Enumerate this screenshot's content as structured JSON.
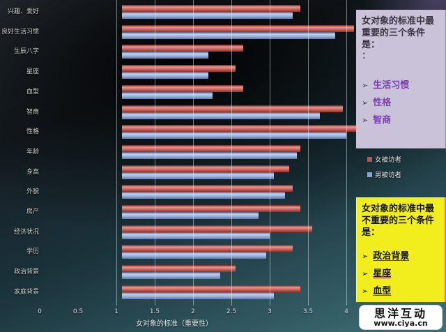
{
  "chart_data": {
    "type": "bar",
    "orientation": "horizontal",
    "title": "",
    "xlabel": "女对象的标准（重要性）",
    "xlim": [
      0,
      4
    ],
    "xticks": [
      0,
      0.5,
      1,
      1.5,
      2,
      2.5,
      3,
      3.5,
      4
    ],
    "grid": "vertical, every 0.5 from 1 to 4",
    "legend_position": "right",
    "categories": [
      "兴趣、爱好",
      "良好生活习惯",
      "生辰八字",
      "星座",
      "血型",
      "智商",
      "性格",
      "年龄",
      "身高",
      "外貌",
      "房产",
      "经济状况",
      "学历",
      "政治背景",
      "家庭背景"
    ],
    "series": [
      {
        "name": "女被访者",
        "color": "#c0504d",
        "values": [
          3.4,
          4.1,
          2.65,
          2.55,
          2.65,
          3.95,
          4.15,
          3.4,
          3.25,
          3.3,
          3.4,
          3.55,
          3.3,
          2.55,
          3.4
        ]
      },
      {
        "name": "男被访者",
        "color": "#8ca3d8",
        "values": [
          3.3,
          3.85,
          2.2,
          2.2,
          2.25,
          3.65,
          4.0,
          3.35,
          3.05,
          3.2,
          2.85,
          3.0,
          2.95,
          2.35,
          3.05
        ]
      }
    ]
  },
  "annotations": {
    "top_box": {
      "title": "女对象的标准中最重要的三个条件是：",
      "colon_line": "：",
      "bullet": "➢",
      "items": [
        "生活习惯",
        "性格",
        "智商"
      ],
      "bg_color": "#c9c2d9"
    },
    "bottom_box": {
      "title": "女对象的标准中最不重要的三个条件是：",
      "bullet": "➢",
      "items": [
        "政治背景",
        "星座",
        "血型"
      ],
      "bg_color": "#f2ee1e"
    }
  },
  "watermark": {
    "name": "思洋互动",
    "url": "www.ciya.cn"
  }
}
